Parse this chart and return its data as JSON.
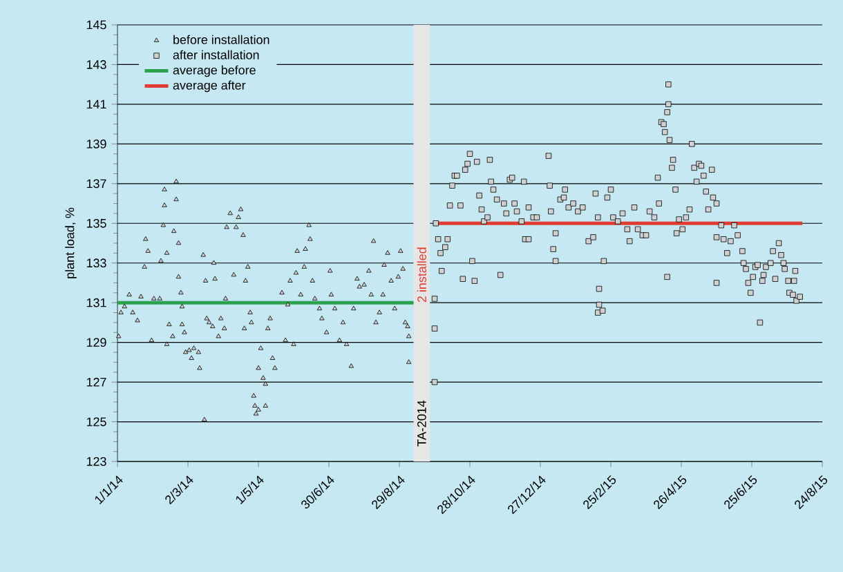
{
  "chart_data": {
    "type": "scatter",
    "ylabel": "plant load, %",
    "xlim": [
      "2014-01-01",
      "2015-08-24"
    ],
    "ylim": [
      123,
      145
    ],
    "xticks": [
      {
        "value": "2014-01-01",
        "label": "1/1/14"
      },
      {
        "value": "2014-03-02",
        "label": "2/3/14"
      },
      {
        "value": "2014-05-01",
        "label": "1/5/14"
      },
      {
        "value": "2014-06-30",
        "label": "30/6/14"
      },
      {
        "value": "2014-08-29",
        "label": "29/8/14"
      },
      {
        "value": "2014-10-28",
        "label": "28/10/14"
      },
      {
        "value": "2014-12-27",
        "label": "27/12/14"
      },
      {
        "value": "2015-02-25",
        "label": "25/2/15"
      },
      {
        "value": "2015-04-26",
        "label": "26/4/15"
      },
      {
        "value": "2015-06-25",
        "label": "25/6/15"
      },
      {
        "value": "2015-08-24",
        "label": "24/8/15"
      }
    ],
    "yticks": [
      123,
      125,
      127,
      129,
      131,
      133,
      135,
      137,
      139,
      141,
      143,
      145
    ],
    "grid": "y",
    "legend": "top left",
    "bands": [
      {
        "axis": "x",
        "from": "2014-09-10",
        "to": "2014-09-24",
        "label": "TA-2014",
        "color": "#e6e6e6"
      }
    ],
    "annotations": [
      "2 installed"
    ],
    "series": [
      {
        "name": "before installation",
        "marker": "triangle",
        "color": "#d0d0d0",
        "x": [
          "2014-01-02",
          "2014-01-04",
          "2014-01-07",
          "2014-01-11",
          "2014-01-14",
          "2014-01-18",
          "2014-01-21",
          "2014-01-24",
          "2014-01-25",
          "2014-01-27",
          "2014-01-30",
          "2014-02-01",
          "2014-02-06",
          "2014-02-07",
          "2014-02-09",
          "2014-02-10",
          "2014-02-10",
          "2014-02-12",
          "2014-02-12",
          "2014-02-14",
          "2014-02-17",
          "2014-02-18",
          "2014-02-20",
          "2014-02-20",
          "2014-02-22",
          "2014-02-22",
          "2014-02-24",
          "2014-02-25",
          "2014-02-25",
          "2014-02-27",
          "2014-02-28",
          "2014-03-03",
          "2014-03-05",
          "2014-03-07",
          "2014-03-11",
          "2014-03-12",
          "2014-03-15",
          "2014-03-16",
          "2014-03-17",
          "2014-03-18",
          "2014-03-20",
          "2014-03-23",
          "2014-03-24",
          "2014-03-25",
          "2014-03-28",
          "2014-03-30",
          "2014-04-02",
          "2014-04-03",
          "2014-04-04",
          "2014-04-07",
          "2014-04-10",
          "2014-04-12",
          "2014-04-14",
          "2014-04-16",
          "2014-04-18",
          "2014-04-19",
          "2014-04-20",
          "2014-04-22",
          "2014-04-24",
          "2014-04-25",
          "2014-04-27",
          "2014-04-28",
          "2014-04-29",
          "2014-05-01",
          "2014-05-01",
          "2014-05-03",
          "2014-05-05",
          "2014-05-07",
          "2014-05-07",
          "2014-05-09",
          "2014-05-11",
          "2014-05-13",
          "2014-05-15",
          "2014-05-21",
          "2014-05-24",
          "2014-05-26",
          "2014-05-28",
          "2014-05-31",
          "2014-06-02",
          "2014-06-03",
          "2014-06-06",
          "2014-06-09",
          "2014-06-10",
          "2014-06-13",
          "2014-06-14",
          "2014-06-16",
          "2014-06-18",
          "2014-06-22",
          "2014-06-24",
          "2014-06-28",
          "2014-07-01",
          "2014-07-02",
          "2014-07-05",
          "2014-07-09",
          "2014-07-12",
          "2014-07-15",
          "2014-07-19",
          "2014-07-21",
          "2014-07-24",
          "2014-07-26",
          "2014-07-30",
          "2014-08-03",
          "2014-08-05",
          "2014-08-07",
          "2014-08-09",
          "2014-08-12",
          "2014-08-15",
          "2014-08-16",
          "2014-08-19",
          "2014-08-22",
          "2014-08-25",
          "2014-08-28",
          "2014-08-30",
          "2014-09-01",
          "2014-09-03",
          "2014-09-05",
          "2014-09-06",
          "2014-09-06"
        ],
        "values": [
          129.3,
          130.5,
          130.8,
          131.4,
          130.5,
          130.1,
          131.3,
          132.8,
          134.2,
          133.6,
          129.1,
          131.2,
          131.2,
          133.1,
          134.9,
          135.9,
          136.7,
          133.5,
          128.9,
          129.9,
          129.3,
          134.6,
          136.2,
          137.1,
          134.0,
          132.3,
          131.5,
          130.8,
          129.9,
          129.5,
          128.5,
          128.6,
          128.2,
          128.7,
          128.5,
          127.7,
          133.4,
          125.1,
          132.1,
          130.2,
          130.0,
          129.8,
          133.0,
          132.2,
          129.3,
          130.2,
          129.7,
          131.2,
          134.8,
          135.5,
          132.4,
          134.8,
          135.3,
          135.7,
          134.4,
          129.7,
          132.1,
          132.8,
          130.5,
          130.0,
          126.3,
          125.8,
          125.4,
          125.6,
          127.7,
          128.7,
          127.2,
          126.9,
          125.8,
          129.7,
          130.2,
          128.2,
          127.7,
          131.5,
          129.1,
          130.9,
          132.1,
          128.9,
          132.5,
          133.6,
          131.4,
          132.8,
          133.7,
          134.9,
          134.2,
          132.1,
          131.2,
          130.7,
          130.2,
          129.5,
          132.6,
          131.4,
          130.7,
          129.1,
          130.0,
          128.9,
          127.8,
          130.7,
          132.2,
          131.8,
          131.9,
          132.6,
          131.4,
          134.1,
          130.0,
          130.5,
          131.4,
          132.9,
          133.5,
          132.1,
          130.7,
          132.3,
          133.6,
          132.7,
          130.0,
          129.8,
          129.3,
          128.0
        ]
      },
      {
        "name": "after installation",
        "marker": "square",
        "color": "#d0d0d0",
        "x": [
          "2014-09-28",
          "2014-09-28",
          "2014-09-28",
          "2014-09-29",
          "2014-10-01",
          "2014-10-03",
          "2014-10-04",
          "2014-10-07",
          "2014-10-09",
          "2014-10-11",
          "2014-10-13",
          "2014-10-15",
          "2014-10-17",
          "2014-10-20",
          "2014-10-22",
          "2014-10-24",
          "2014-10-26",
          "2014-10-28",
          "2014-10-30",
          "2014-11-01",
          "2014-11-03",
          "2014-11-05",
          "2014-11-07",
          "2014-11-09",
          "2014-11-12",
          "2014-11-14",
          "2014-11-15",
          "2014-11-17",
          "2014-11-20",
          "2014-11-23",
          "2014-11-26",
          "2014-11-28",
          "2014-12-01",
          "2014-12-03",
          "2014-12-05",
          "2014-12-07",
          "2014-12-11",
          "2014-12-13",
          "2014-12-14",
          "2014-12-17",
          "2014-12-17",
          "2014-12-21",
          "2014-12-24",
          "2015-01-03",
          "2015-01-04",
          "2015-01-05",
          "2015-01-07",
          "2015-01-09",
          "2015-01-09",
          "2015-01-13",
          "2015-01-16",
          "2015-01-17",
          "2015-01-20",
          "2015-01-24",
          "2015-01-28",
          "2015-02-01",
          "2015-02-06",
          "2015-02-10",
          "2015-02-12",
          "2015-02-14",
          "2015-02-15",
          "2015-02-15",
          "2015-02-14",
          "2015-02-18",
          "2015-02-19",
          "2015-02-22",
          "2015-02-25",
          "2015-02-27",
          "2015-03-03",
          "2015-03-07",
          "2015-03-11",
          "2015-03-13",
          "2015-03-17",
          "2015-03-20",
          "2015-03-24",
          "2015-03-27",
          "2015-03-30",
          "2015-04-03",
          "2015-04-06",
          "2015-04-07",
          "2015-04-09",
          "2015-04-11",
          "2015-04-12",
          "2015-04-14",
          "2015-04-15",
          "2015-04-15",
          "2015-04-16",
          "2015-04-18",
          "2015-04-19",
          "2015-04-21",
          "2015-04-14",
          "2015-04-22",
          "2015-04-24",
          "2015-04-27",
          "2015-04-30",
          "2015-05-03",
          "2015-05-05",
          "2015-05-07",
          "2015-05-09",
          "2015-05-11",
          "2015-05-13",
          "2015-05-15",
          "2015-05-17",
          "2015-05-19",
          "2015-05-22",
          "2015-05-23",
          "2015-05-26",
          "2015-05-26",
          "2015-05-26",
          "2015-05-30",
          "2015-06-01",
          "2015-06-04",
          "2015-06-07",
          "2015-06-10",
          "2015-06-13",
          "2015-06-17",
          "2015-06-18",
          "2015-06-20",
          "2015-06-22",
          "2015-06-24",
          "2015-06-26",
          "2015-06-28",
          "2015-06-30",
          "2015-07-02",
          "2015-07-04",
          "2015-07-05",
          "2015-07-07",
          "2015-07-11",
          "2015-07-13",
          "2015-07-15",
          "2015-07-18",
          "2015-07-20",
          "2015-07-22",
          "2015-07-23",
          "2015-07-26",
          "2015-07-27",
          "2015-07-30",
          "2015-07-31",
          "2015-08-01",
          "2015-08-02",
          "2015-08-05"
        ],
        "values": [
          127.0,
          129.7,
          131.2,
          135.0,
          134.2,
          133.5,
          132.6,
          133.8,
          134.2,
          135.9,
          136.9,
          137.4,
          137.4,
          135.9,
          132.2,
          137.7,
          138.0,
          138.5,
          133.1,
          132.1,
          138.1,
          136.4,
          135.7,
          135.1,
          135.3,
          138.2,
          137.1,
          136.7,
          136.2,
          132.4,
          136.0,
          135.5,
          137.2,
          137.3,
          136.0,
          135.6,
          135.1,
          137.1,
          134.2,
          134.2,
          135.8,
          135.3,
          135.3,
          138.4,
          136.9,
          135.6,
          133.7,
          133.1,
          134.5,
          136.2,
          136.3,
          136.7,
          135.8,
          136.0,
          135.6,
          135.8,
          134.1,
          134.3,
          136.5,
          135.3,
          131.7,
          130.9,
          130.5,
          130.6,
          133.1,
          136.3,
          136.7,
          135.3,
          135.1,
          135.5,
          134.7,
          134.1,
          135.8,
          134.7,
          134.4,
          134.4,
          135.6,
          135.3,
          137.3,
          136.0,
          140.1,
          140.0,
          139.6,
          140.6,
          141.0,
          142.0,
          139.2,
          137.8,
          138.2,
          136.7,
          132.3,
          134.5,
          135.2,
          134.7,
          135.3,
          135.7,
          139.0,
          137.8,
          137.1,
          138.0,
          137.9,
          137.4,
          136.6,
          135.7,
          137.7,
          136.3,
          136.0,
          132.0,
          134.3,
          134.9,
          134.2,
          133.5,
          134.1,
          134.9,
          134.4,
          133.6,
          133.0,
          132.7,
          132.0,
          131.5,
          132.3,
          132.8,
          132.9,
          130.0,
          132.1,
          132.4,
          132.8,
          133.0,
          133.6,
          132.2,
          134.0,
          133.4,
          133.0,
          132.7,
          132.1,
          131.5,
          131.4,
          132.1,
          132.6,
          131.1,
          131.3
        ]
      },
      {
        "name": "average before",
        "type": "line",
        "color": "#2ca24f",
        "x": [
          "2014-01-01",
          "2014-09-10"
        ],
        "values": [
          131,
          131
        ]
      },
      {
        "name": "average after",
        "type": "line",
        "color": "#e03c31",
        "x": [
          "2014-09-29",
          "2015-08-07"
        ],
        "values": [
          135,
          135
        ]
      }
    ]
  }
}
